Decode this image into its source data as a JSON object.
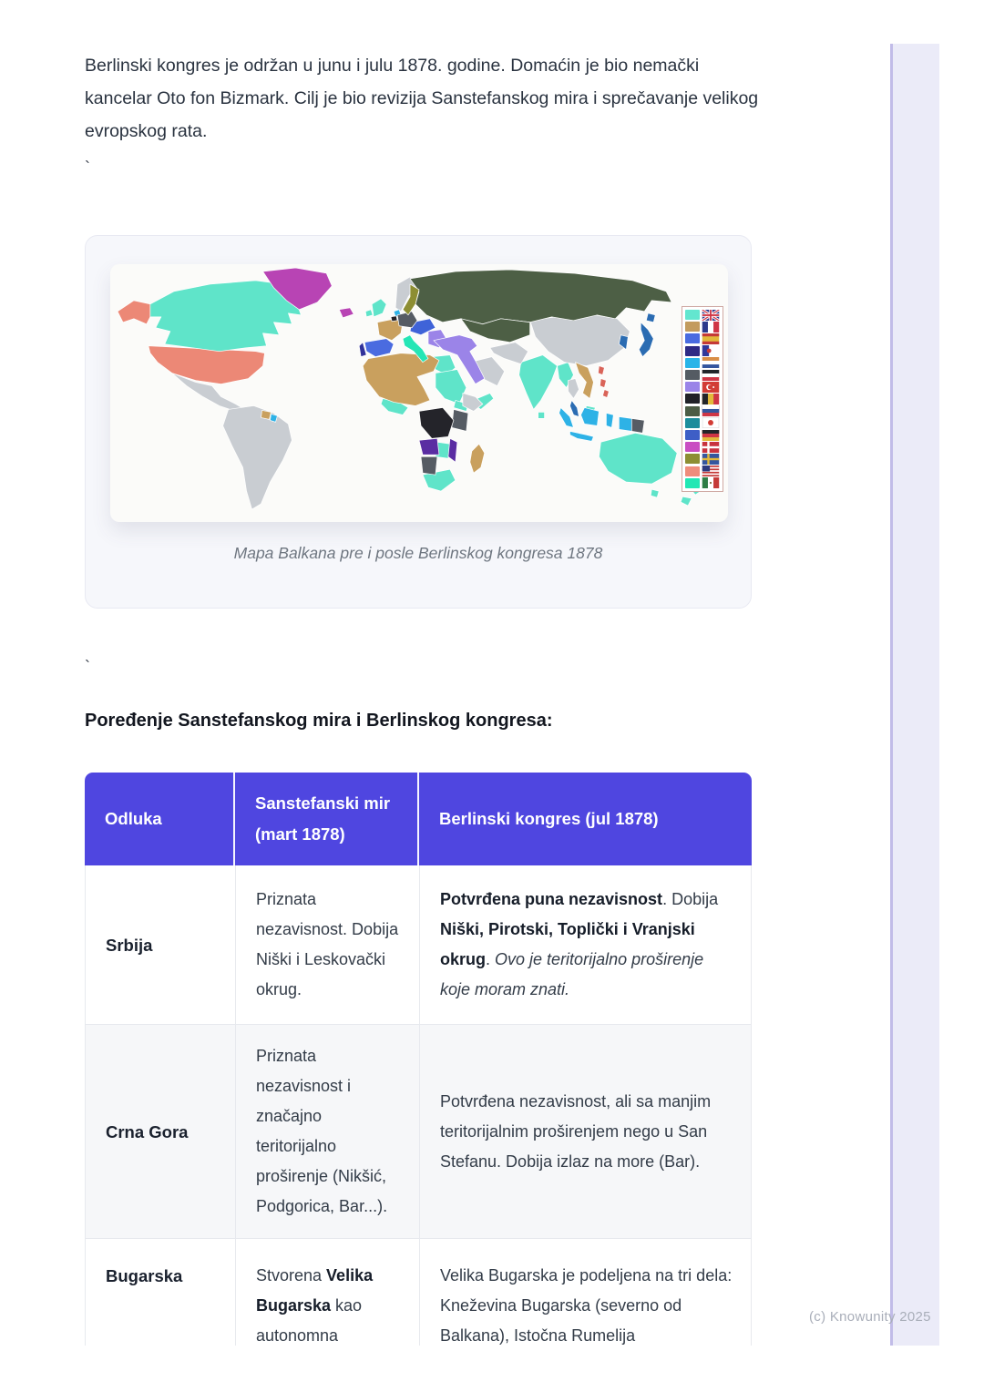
{
  "page": {
    "intro": "Berlinski kongres je održan u junu i julu 1878. godine. Domaćin je bio nemački kancelar Oto fon Bizmark. Cilj je bio revizija Sanstefanskog mira i sprečavanje velikog evropskog rata.",
    "tick1": "`",
    "tick2": "`",
    "heading": "Poređenje Sanstefanskog mira i Berlinskog kongresa:",
    "watermark": "(c) Knowunity 2025"
  },
  "figure": {
    "caption": "Mapa Balkana pre i posle Berlinskog kongresa 1878"
  },
  "map": {
    "palette": {
      "british": "#5fe4c9",
      "french": "#c9a05e",
      "spanish": "#4a6be0",
      "austro": "#3f63d8",
      "portuguese_eu": "#30319a",
      "portuguese_col": "#5a2da2",
      "dutch": "#2eb2e6",
      "german": "#565c64",
      "ottoman": "#9b84e8",
      "belgian": "#24242a",
      "russian": "#4d5f45",
      "japanese": "#2b6cb2",
      "danish": "#b844b4",
      "swedish": "#8d8e33",
      "usa": "#ec8876",
      "italian": "#25e6b5",
      "philippines": "#d96459",
      "independent": "#c9cdd2",
      "ocean": "#fbfbf9"
    },
    "legend": [
      {
        "color": "#63e6cf",
        "flag": "uk"
      },
      {
        "color": "#c39b5e",
        "flag": "france"
      },
      {
        "color": "#4a6be0",
        "flag": "spain"
      },
      {
        "color": "#2f2a85",
        "flag": "portugal"
      },
      {
        "color": "#2ab4e8",
        "flag": "netherlands"
      },
      {
        "color": "#555b63",
        "flag": "german_empire"
      },
      {
        "color": "#9b84e8",
        "flag": "ottoman"
      },
      {
        "color": "#222228",
        "flag": "belgium"
      },
      {
        "color": "#4d5c45",
        "flag": "russia"
      },
      {
        "color": "#1d8d9c",
        "flag": "japan"
      },
      {
        "color": "#3e5ec6",
        "flag": "germany"
      },
      {
        "color": "#c94ec2",
        "flag": "denmark"
      },
      {
        "color": "#8d8e33",
        "flag": "sweden"
      },
      {
        "color": "#ef8d7c",
        "flag": "usa"
      },
      {
        "color": "#22e7b4",
        "flag": "mexico"
      }
    ]
  },
  "table": {
    "header_bg": "#4f46e0",
    "columns": [
      "Odluka",
      "Sanstefanski mir (mart 1878)",
      "Berlinski kongres (jul 1878)"
    ],
    "rows": [
      {
        "label": "Srbija",
        "sanstefan": [
          {
            "t": "Priznata nezavisnost. Dobija Niški i Leskovački okrug."
          }
        ],
        "berlin": [
          {
            "t": "Potvrđena puna nezavisnost",
            "b": true
          },
          {
            "t": ". Dobija "
          },
          {
            "t": "Niški, Pirotski, Toplički i Vranjski okrug",
            "b": true
          },
          {
            "t": ". "
          },
          {
            "t": "Ovo je teritorijalno proširenje koje moram znati.",
            "i": true
          }
        ]
      },
      {
        "label": "Crna Gora",
        "sanstefan": [
          {
            "t": "Priznata nezavisnost i značajno teritorijalno proširenje (Nikšić, Podgorica, Bar...)."
          }
        ],
        "berlin": [
          {
            "t": "Potvrđena nezavisnost, ali sa manjim teritorijalnim proširenjem nego u San Stefanu. Dobija izlaz na more (Bar)."
          }
        ]
      },
      {
        "label": "Bugarska",
        "sanstefan": [
          {
            "t": "Stvorena "
          },
          {
            "t": "Velika Bugarska",
            "b": true
          },
          {
            "t": " kao autonomna"
          }
        ],
        "berlin": [
          {
            "t": "Velika Bugarska je podeljena na tri dela: Kneževina Bugarska (severno od Balkana), Istočna Rumelija"
          }
        ]
      }
    ]
  }
}
